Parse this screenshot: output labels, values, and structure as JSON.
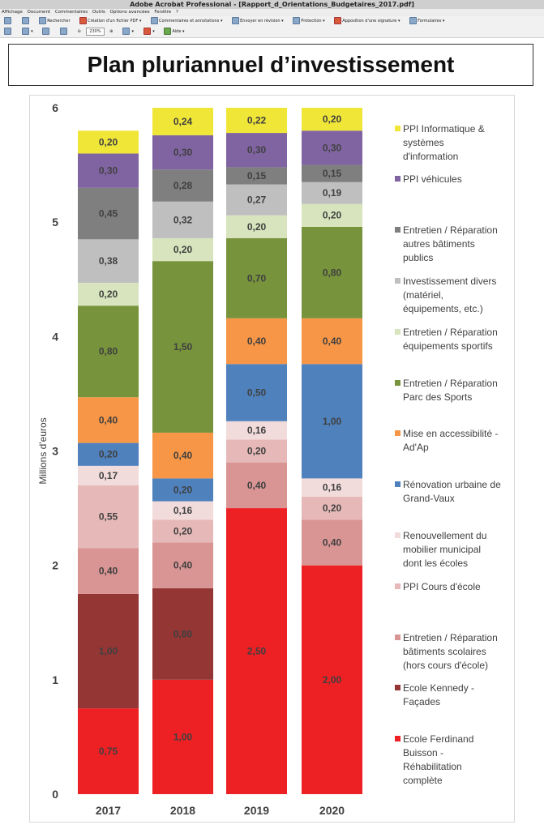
{
  "window": {
    "title": "Adobe Acrobat Professional - [Rapport_d_Orientations_Budgetaires_2017.pdf]"
  },
  "menubar": {
    "items": [
      "Affichage",
      "Document",
      "Commentaires",
      "Outils",
      "Options avancées",
      "Fenêtre",
      "?"
    ]
  },
  "toolbar": {
    "search_label": "Rechercher",
    "create_pdf_label": "Création d'un fichier PDF",
    "comments_label": "Commentaires et annotations",
    "send_review_label": "Envoyer en révision",
    "protection_label": "Protection",
    "signature_label": "Apposition d'une signature",
    "forms_label": "Formulaires",
    "zoom_value": "230%",
    "help_label": "Aide"
  },
  "slide": {
    "title": "Plan pluriannuel d’investissement"
  },
  "colors": {
    "ferdinand": "#ED2024",
    "kennedy": "#943634",
    "scolaires": "#D99594",
    "cours": "#E6B9B8",
    "mobilier": "#F2DCDB",
    "grand_vaux": "#4F81BD",
    "adap": "#F79646",
    "sports_parc": "#77933C",
    "sportifs": "#D7E4BD",
    "divers": "#BFBFBF",
    "autres_batiments": "#7F7F7F",
    "vehicules": "#8064A2",
    "informatique": "#F0E638"
  },
  "chart_data": {
    "type": "bar",
    "stacked": true,
    "categories": [
      "2017",
      "2018",
      "2019",
      "2020"
    ],
    "ylabel": "Millions d'euros",
    "ylim": [
      0,
      6
    ],
    "yticks": [
      "0",
      "1",
      "2",
      "3",
      "4",
      "5",
      "6"
    ],
    "legend_position": "right",
    "series": [
      {
        "name": "Ecole Ferdinand Buisson - Réhabilitation complète",
        "color_key": "ferdinand",
        "values": [
          0.75,
          1.0,
          2.5,
          2.0
        ],
        "labels": [
          "0,75",
          "1,00",
          "2,50",
          "2,00"
        ]
      },
      {
        "name": "Ecole Kennedy - Façades",
        "color_key": "kennedy",
        "values": [
          1.0,
          0.8,
          0,
          0
        ],
        "labels": [
          "1,00",
          "0,80",
          "",
          ""
        ]
      },
      {
        "name": "Entretien / Réparation bâtiments scolaires (hors cours d'école)",
        "color_key": "scolaires",
        "values": [
          0.4,
          0.4,
          0.4,
          0.4
        ],
        "labels": [
          "0,40",
          "0,40",
          "0,40",
          "0,40"
        ]
      },
      {
        "name": "PPI Cours d'école",
        "color_key": "cours",
        "values": [
          0.55,
          0.2,
          0.2,
          0.2
        ],
        "labels": [
          "0,55",
          "0,20",
          "0,20",
          "0,20"
        ]
      },
      {
        "name": "Renouvellement du mobilier municipal dont les écoles",
        "color_key": "mobilier",
        "values": [
          0.17,
          0.16,
          0.16,
          0.16
        ],
        "labels": [
          "0,17",
          "0,16",
          "0,16",
          "0,16"
        ]
      },
      {
        "name": "Rénovation urbaine de Grand-Vaux",
        "color_key": "grand_vaux",
        "values": [
          0.2,
          0.2,
          0.5,
          1.0
        ],
        "labels": [
          "0,20",
          "0,20",
          "0,50",
          "1,00"
        ]
      },
      {
        "name": "Mise en accessibilité - Ad'Ap",
        "color_key": "adap",
        "values": [
          0.4,
          0.4,
          0.4,
          0.4
        ],
        "labels": [
          "0,40",
          "0,40",
          "0,40",
          "0,40"
        ]
      },
      {
        "name": "Entretien / Réparation Parc des Sports",
        "color_key": "sports_parc",
        "values": [
          0.8,
          1.5,
          0.7,
          0.8
        ],
        "labels": [
          "0,80",
          "1,50",
          "0,70",
          "0,80"
        ]
      },
      {
        "name": "Entretien / Réparation équipements sportifs",
        "color_key": "sportifs",
        "values": [
          0.2,
          0.2,
          0.2,
          0.2
        ],
        "labels": [
          "0,20",
          "0,20",
          "0,20",
          "0,20"
        ]
      },
      {
        "name": "Investissement divers (matériel, équipements, etc.)",
        "color_key": "divers",
        "values": [
          0.38,
          0.32,
          0.27,
          0.19
        ],
        "labels": [
          "0,38",
          "0,32",
          "0,27",
          "0,19"
        ]
      },
      {
        "name": "Entretien / Réparation autres bâtiments publics",
        "color_key": "autres_batiments",
        "values": [
          0.45,
          0.28,
          0.15,
          0.15
        ],
        "labels": [
          "0,45",
          "0,28",
          "0,15",
          "0,15"
        ]
      },
      {
        "name": "PPI véhicules",
        "color_key": "vehicules",
        "values": [
          0.3,
          0.3,
          0.3,
          0.3
        ],
        "labels": [
          "0,30",
          "0,30",
          "0,30",
          "0,30"
        ]
      },
      {
        "name": "PPI Informatique & systèmes d'information",
        "color_key": "informatique",
        "values": [
          0.2,
          0.24,
          0.22,
          0.2
        ],
        "labels": [
          "0,20",
          "0,24",
          "0,22",
          "0,20"
        ]
      }
    ],
    "legend": [
      {
        "color_key": "informatique",
        "lines": [
          "PPI Informatique &",
          "systèmes",
          "d'information"
        ]
      },
      {
        "color_key": "vehicules",
        "lines": [
          "PPI véhicules"
        ]
      },
      {
        "color_key": "autres_batiments",
        "lines": [
          "Entretien / Réparation",
          "autres bâtiments",
          "publics"
        ]
      },
      {
        "color_key": "divers",
        "lines": [
          "Investissement divers",
          "(matériel,",
          "équipements, etc.)"
        ]
      },
      {
        "color_key": "sportifs",
        "lines": [
          "Entretien / Réparation",
          "équipements sportifs"
        ]
      },
      {
        "color_key": "sports_parc",
        "lines": [
          "Entretien / Réparation",
          "Parc des Sports"
        ]
      },
      {
        "color_key": "adap",
        "lines": [
          "Mise en accessibilité -",
          "Ad'Ap"
        ]
      },
      {
        "color_key": "grand_vaux",
        "lines": [
          "Rénovation urbaine de",
          "Grand-Vaux"
        ]
      },
      {
        "color_key": "mobilier",
        "lines": [
          "Renouvellement du",
          "mobilier municipal",
          "dont les écoles"
        ]
      },
      {
        "color_key": "cours",
        "lines": [
          "PPI Cours d'école"
        ]
      },
      {
        "color_key": "scolaires",
        "lines": [
          "Entretien / Réparation",
          "bâtiments scolaires",
          "(hors cours d'école)"
        ]
      },
      {
        "color_key": "kennedy",
        "lines": [
          "Ecole Kennedy -",
          "Façades"
        ]
      },
      {
        "color_key": "ferdinand",
        "lines": [
          "Ecole Ferdinand",
          "Buisson -",
          "Réhabilitation",
          "complète"
        ]
      }
    ]
  }
}
